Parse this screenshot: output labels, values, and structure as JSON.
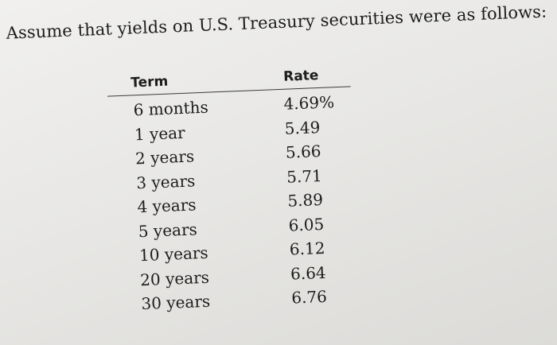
{
  "intro_text": "Assume that yields on U.S. Treasury securities were as follows:",
  "table": {
    "headers": {
      "term": "Term",
      "rate": "Rate"
    },
    "rows": [
      {
        "term": "6 months",
        "rate": "4.69%"
      },
      {
        "term": "1 year",
        "rate": "5.49"
      },
      {
        "term": "2 years",
        "rate": "5.66"
      },
      {
        "term": "3 years",
        "rate": "5.71"
      },
      {
        "term": "4 years",
        "rate": "5.89"
      },
      {
        "term": "5 years",
        "rate": "6.05"
      },
      {
        "term": "10 years",
        "rate": "6.12"
      },
      {
        "term": "20 years",
        "rate": "6.64"
      },
      {
        "term": "30 years",
        "rate": "6.76"
      }
    ]
  }
}
